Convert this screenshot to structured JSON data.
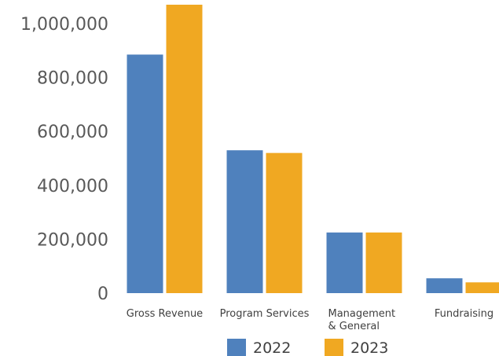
{
  "chart_data": {
    "type": "bar",
    "title": "",
    "xlabel": "",
    "ylabel": "",
    "categories": [
      [
        "Gross Revenue"
      ],
      [
        "Program Services"
      ],
      [
        "Management",
        "& General"
      ],
      [
        "Fundraising"
      ]
    ],
    "series": [
      {
        "name": "2022",
        "color": "#4F81BD",
        "values": [
          885000,
          530000,
          225000,
          55000
        ]
      },
      {
        "name": "2023",
        "color": "#F0A822",
        "values": [
          1070000,
          520000,
          225000,
          40000
        ]
      }
    ],
    "ylim": [
      0,
      1000000
    ],
    "yticks": [
      0,
      200000,
      400000,
      600000,
      800000,
      1000000
    ],
    "ytick_labels": [
      "0",
      "200,000",
      "400,000",
      "600,000",
      "800,000",
      "1,000,000"
    ],
    "grid": false,
    "legend_position": "bottom"
  }
}
